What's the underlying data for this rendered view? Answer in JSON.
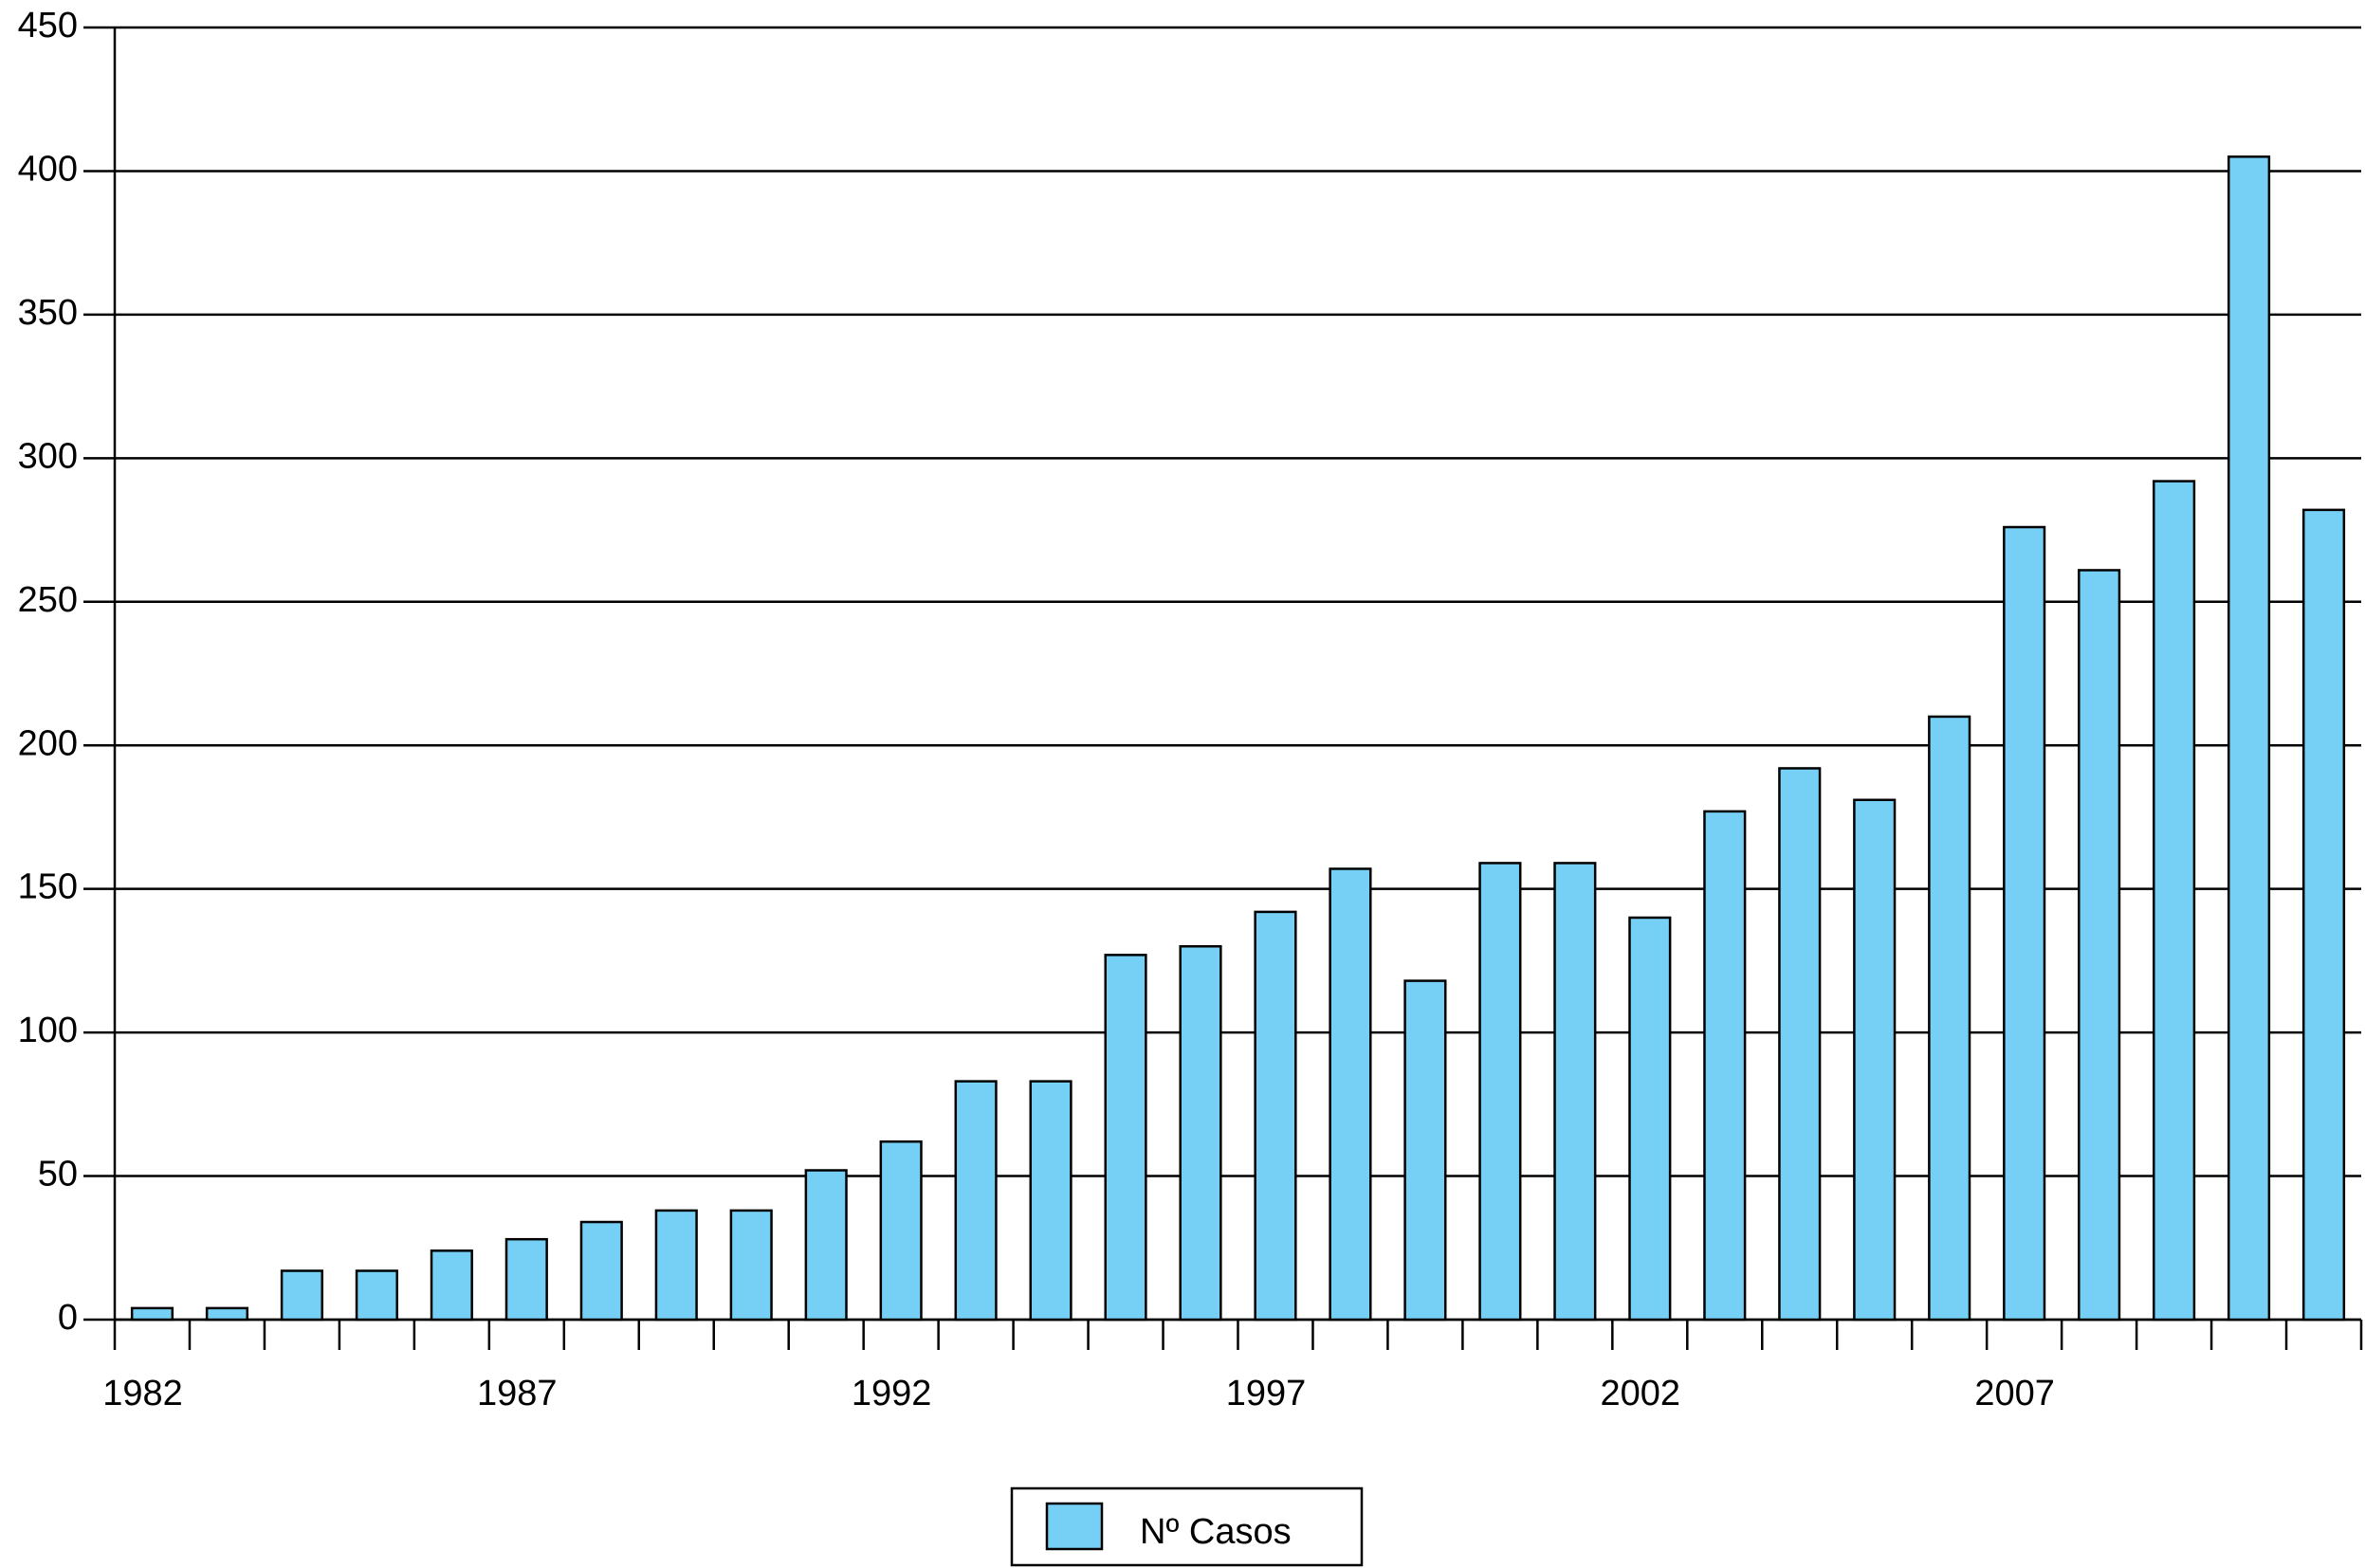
{
  "chart_data": {
    "type": "bar",
    "categories": [
      "1982",
      null,
      null,
      null,
      null,
      "1987",
      null,
      null,
      null,
      null,
      "1992",
      null,
      null,
      null,
      null,
      "1997",
      null,
      null,
      null,
      null,
      "2002",
      null,
      null,
      null,
      null,
      "2007",
      null,
      null,
      null,
      null
    ],
    "series": [
      {
        "name": "Nº Casos",
        "color": "#76d0f5",
        "values": [
          4,
          4,
          17,
          17,
          24,
          28,
          34,
          38,
          38,
          52,
          62,
          83,
          83,
          127,
          130,
          142,
          157,
          118,
          159,
          159,
          140,
          177,
          192,
          181,
          210,
          276,
          261,
          292,
          405,
          282
        ]
      }
    ],
    "ylim": [
      0,
      450
    ],
    "yticks": [
      0,
      50,
      100,
      150,
      200,
      250,
      300,
      350,
      400,
      450
    ],
    "grid": true,
    "legend": "bottom"
  }
}
